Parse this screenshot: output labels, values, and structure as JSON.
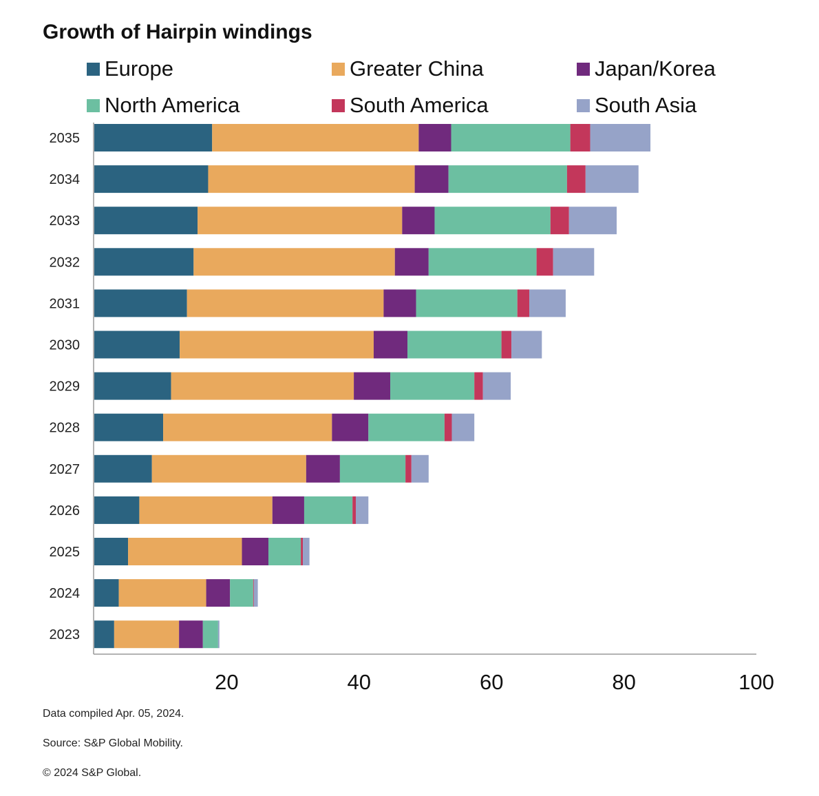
{
  "chart_data": {
    "type": "bar",
    "orientation": "horizontal",
    "stacked": true,
    "title": "Growth of Hairpin windings",
    "categories": [
      "2035",
      "2034",
      "2033",
      "2032",
      "2031",
      "2030",
      "2029",
      "2028",
      "2027",
      "2026",
      "2025",
      "2024",
      "2023"
    ],
    "series": [
      {
        "name": "Europe",
        "color": "#2b6380",
        "values": [
          17.8,
          17.2,
          15.6,
          15.0,
          14.0,
          12.9,
          11.6,
          10.4,
          8.7,
          6.8,
          5.1,
          3.7,
          3.0
        ]
      },
      {
        "name": "Greater China",
        "color": "#e9a95d",
        "values": [
          31.2,
          31.2,
          30.9,
          30.4,
          29.7,
          29.3,
          27.6,
          25.5,
          23.3,
          20.1,
          17.2,
          13.2,
          9.8
        ]
      },
      {
        "name": "Japan/Korea",
        "color": "#702a7d",
        "values": [
          4.9,
          5.1,
          4.9,
          5.1,
          4.9,
          5.1,
          5.5,
          5.5,
          5.1,
          4.8,
          4.0,
          3.6,
          3.6
        ]
      },
      {
        "name": "North America",
        "color": "#6cbfa1",
        "values": [
          18.0,
          17.9,
          17.5,
          16.3,
          15.3,
          14.2,
          12.7,
          11.5,
          9.9,
          7.3,
          4.9,
          3.5,
          2.3
        ]
      },
      {
        "name": "South America",
        "color": "#c3375b",
        "values": [
          3.0,
          2.8,
          2.8,
          2.5,
          1.8,
          1.5,
          1.3,
          1.1,
          0.9,
          0.5,
          0.3,
          0.1,
          0.0
        ]
      },
      {
        "name": "South Asia",
        "color": "#96a3c8",
        "values": [
          9.1,
          8.0,
          7.2,
          6.2,
          5.5,
          4.6,
          4.2,
          3.4,
          2.6,
          1.9,
          1.0,
          0.6,
          0.2
        ]
      }
    ],
    "xlabel": "",
    "ylabel": "",
    "xlim": [
      0,
      100
    ],
    "xticks": [
      20,
      40,
      60,
      80,
      100
    ],
    "grid": false,
    "legend_position": "top"
  },
  "footnotes": {
    "compiled": "Data compiled Apr. 05, 2024.",
    "source": "Source: S&P Global Mobility.",
    "copyright": "© 2024 S&P Global."
  }
}
